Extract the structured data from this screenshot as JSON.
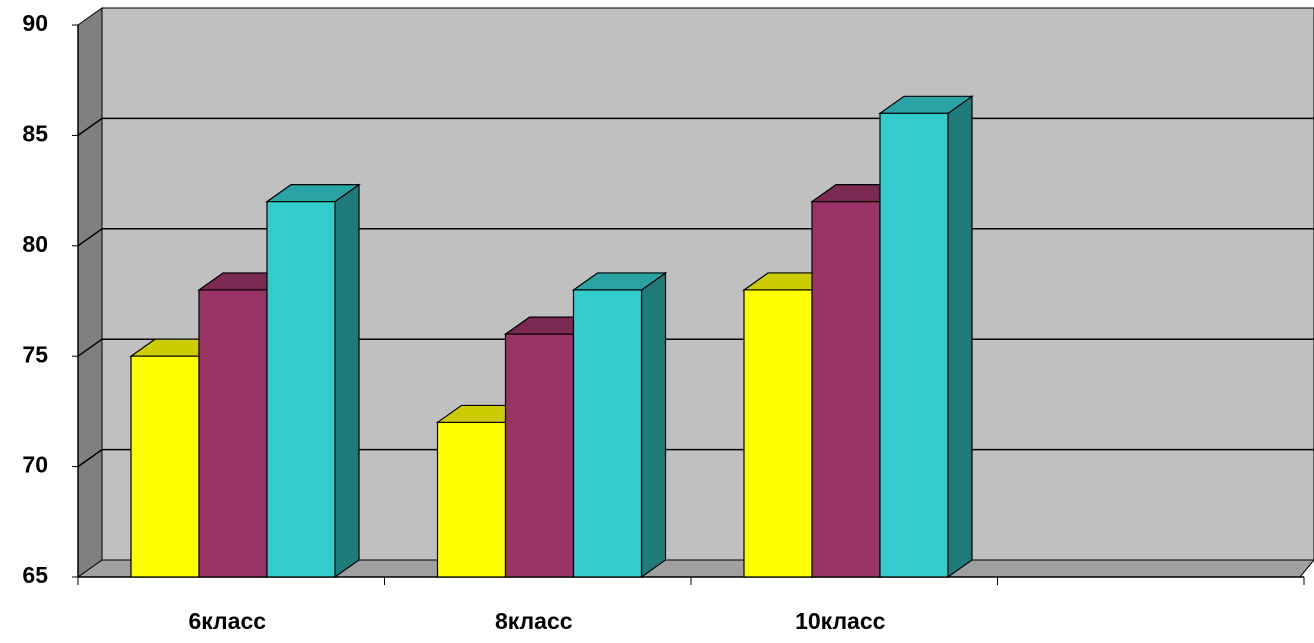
{
  "chart_data": {
    "type": "bar3d",
    "categories": [
      "6класс",
      "8класс",
      "10класс",
      null
    ],
    "series": [
      {
        "color": "#ffff00",
        "values": [
          75,
          72,
          78,
          null
        ]
      },
      {
        "color": "#993366",
        "values": [
          78,
          76,
          82,
          null
        ]
      },
      {
        "color": "#33cccc",
        "values": [
          82,
          78,
          86,
          null
        ]
      }
    ],
    "ylim": [
      65,
      90
    ],
    "yticks": [
      65,
      70,
      75,
      80,
      85,
      90
    ],
    "grid": true
  }
}
